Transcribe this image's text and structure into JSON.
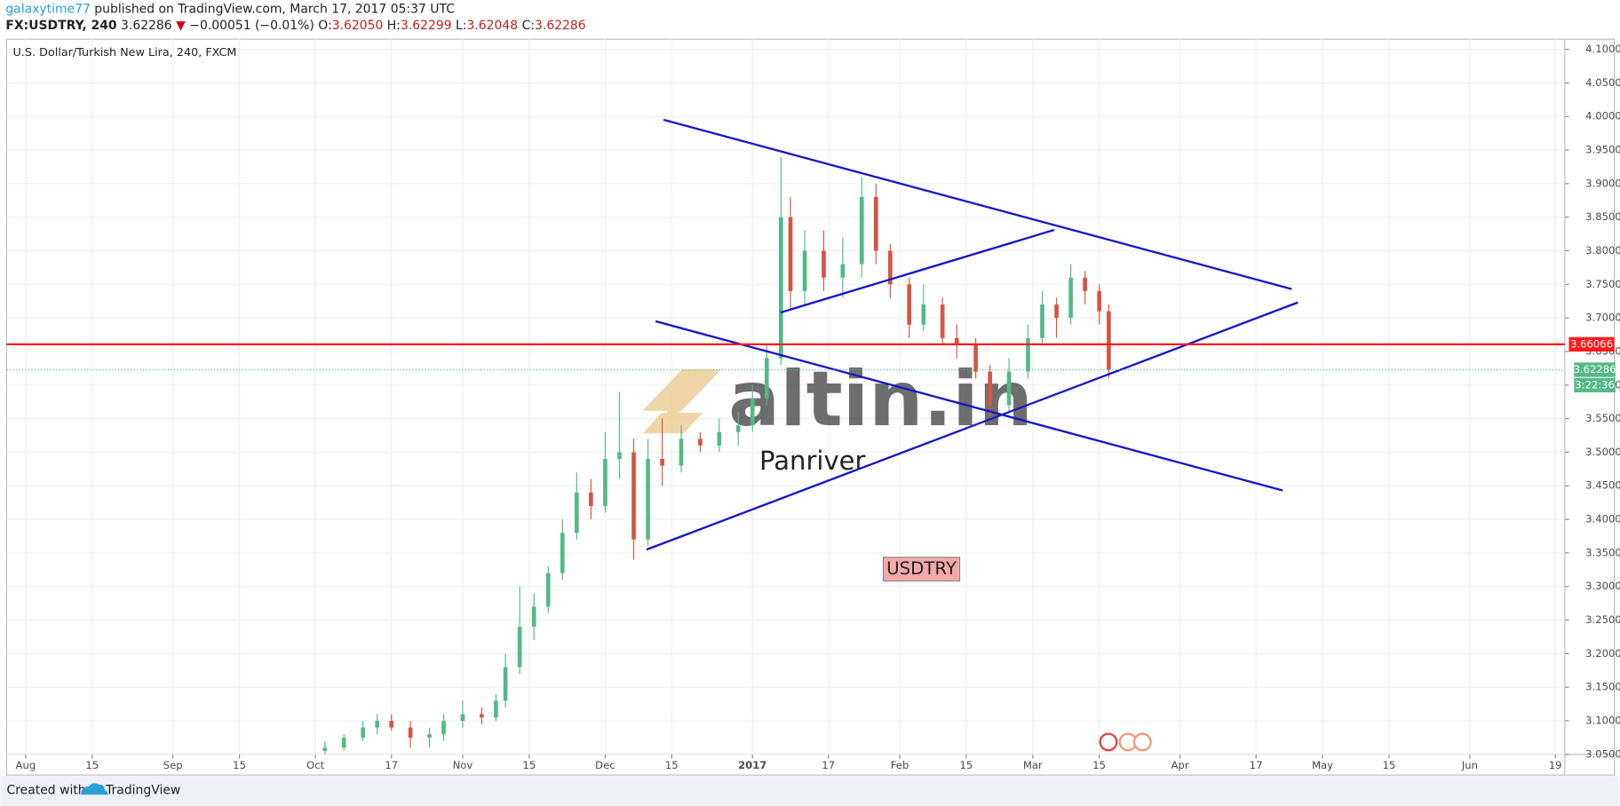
{
  "header": {
    "author": "galaxytime77",
    "published": "published on TradingView.com, March 17, 2017 05:37 UTC",
    "symbol": "FX:USDTRY, 240",
    "price": "3.62286",
    "change": "−0.00051 (−0.01%)",
    "ohlc": [
      {
        "label": "O:",
        "value": "3.62050"
      },
      {
        "label": "H:",
        "value": "3.62299"
      },
      {
        "label": "L:",
        "value": "3.62048"
      },
      {
        "label": "C:",
        "value": "3.62286"
      }
    ]
  },
  "chart_data": {
    "type": "candlestick",
    "title": "U.S. Dollar/Turkish New Lira, 240, FXCM",
    "up_color": "#53b987",
    "down_color": "#d75442",
    "grid": true,
    "candles": {
      "x": [
        63,
        67,
        71,
        74,
        77,
        81,
        85,
        88,
        92,
        96,
        99,
        101,
        104,
        107,
        110,
        113,
        116,
        119,
        122,
        125,
        128,
        131,
        134,
        138,
        142,
        146,
        150,
        153,
        156,
        159,
        161,
        164,
        168,
        172,
        176,
        179,
        182,
        186,
        189,
        193,
        196,
        200,
        203,
        207,
        211,
        214,
        217,
        220,
        223,
        226,
        228
      ],
      "open": [
        3.055,
        3.06,
        3.075,
        3.09,
        3.1,
        3.09,
        3.075,
        3.08,
        3.1,
        3.11,
        3.105,
        3.13,
        3.18,
        3.24,
        3.27,
        3.32,
        3.38,
        3.44,
        3.42,
        3.49,
        3.5,
        3.37,
        3.49,
        3.48,
        3.52,
        3.51,
        3.53,
        3.54,
        3.58,
        3.64,
        3.85,
        3.74,
        3.8,
        3.76,
        3.78,
        3.88,
        3.8,
        3.75,
        3.69,
        3.72,
        3.67,
        3.66,
        3.62,
        3.57,
        3.62,
        3.67,
        3.72,
        3.7,
        3.76,
        3.74,
        3.71
      ],
      "high": [
        3.07,
        3.08,
        3.1,
        3.11,
        3.11,
        3.1,
        3.09,
        3.11,
        3.13,
        3.12,
        3.14,
        3.2,
        3.3,
        3.29,
        3.33,
        3.4,
        3.47,
        3.46,
        3.53,
        3.59,
        3.52,
        3.52,
        3.55,
        3.54,
        3.53,
        3.55,
        3.56,
        3.6,
        3.66,
        3.94,
        3.88,
        3.83,
        3.83,
        3.82,
        3.91,
        3.9,
        3.81,
        3.76,
        3.75,
        3.73,
        3.69,
        3.67,
        3.63,
        3.64,
        3.69,
        3.74,
        3.73,
        3.78,
        3.77,
        3.75,
        3.72
      ],
      "low": [
        3.05,
        3.055,
        3.07,
        3.08,
        3.085,
        3.06,
        3.06,
        3.07,
        3.09,
        3.095,
        3.1,
        3.12,
        3.17,
        3.22,
        3.26,
        3.31,
        3.37,
        3.4,
        3.41,
        3.46,
        3.34,
        3.36,
        3.45,
        3.47,
        3.5,
        3.5,
        3.51,
        3.53,
        3.57,
        3.63,
        3.71,
        3.72,
        3.74,
        3.73,
        3.76,
        3.78,
        3.73,
        3.67,
        3.68,
        3.66,
        3.64,
        3.61,
        3.555,
        3.56,
        3.61,
        3.66,
        3.67,
        3.69,
        3.72,
        3.69,
        3.61
      ],
      "close": [
        3.06,
        3.075,
        3.09,
        3.1,
        3.09,
        3.075,
        3.08,
        3.1,
        3.11,
        3.105,
        3.13,
        3.18,
        3.24,
        3.27,
        3.32,
        3.38,
        3.44,
        3.42,
        3.49,
        3.5,
        3.37,
        3.49,
        3.48,
        3.52,
        3.51,
        3.53,
        3.54,
        3.58,
        3.64,
        3.85,
        3.74,
        3.8,
        3.76,
        3.78,
        3.88,
        3.8,
        3.75,
        3.69,
        3.72,
        3.67,
        3.66,
        3.62,
        3.57,
        3.62,
        3.67,
        3.72,
        3.7,
        3.76,
        3.74,
        3.71,
        3.62286
      ]
    },
    "xlim": [
      -4,
      324
    ],
    "ylim": [
      3.05,
      4.115
    ],
    "xticks": [
      {
        "value": 0,
        "label": "Aug"
      },
      {
        "value": 14,
        "label": "15"
      },
      {
        "value": 31,
        "label": "Sep"
      },
      {
        "value": 45,
        "label": "15"
      },
      {
        "value": 61,
        "label": "Oct"
      },
      {
        "value": 77,
        "label": "17"
      },
      {
        "value": 92,
        "label": "Nov"
      },
      {
        "value": 106,
        "label": "15"
      },
      {
        "value": 122,
        "label": "Dec"
      },
      {
        "value": 136,
        "label": "15"
      },
      {
        "value": 153,
        "label": "2017"
      },
      {
        "value": 169,
        "label": "17"
      },
      {
        "value": 184,
        "label": "Feb"
      },
      {
        "value": 198,
        "label": "15"
      },
      {
        "value": 212,
        "label": "Mar"
      },
      {
        "value": 226,
        "label": "15"
      },
      {
        "value": 243,
        "label": "Apr"
      },
      {
        "value": 259,
        "label": "17"
      },
      {
        "value": 273,
        "label": "May"
      },
      {
        "value": 287,
        "label": "15"
      },
      {
        "value": 304,
        "label": "Jun"
      },
      {
        "value": 322,
        "label": "19"
      }
    ],
    "yticks": [
      {
        "value": 3.05,
        "label": "3.05000"
      },
      {
        "value": 3.1,
        "label": "3.10000"
      },
      {
        "value": 3.15,
        "label": "3.15000"
      },
      {
        "value": 3.2,
        "label": "3.20000"
      },
      {
        "value": 3.25,
        "label": "3.25000"
      },
      {
        "value": 3.3,
        "label": "3.30000"
      },
      {
        "value": 3.35,
        "label": "3.35000"
      },
      {
        "value": 3.4,
        "label": "3.40000"
      },
      {
        "value": 3.45,
        "label": "3.45000"
      },
      {
        "value": 3.5,
        "label": "3.50000"
      },
      {
        "value": 3.55,
        "label": "3.55000"
      },
      {
        "value": 3.6,
        "label": "3.60000"
      },
      {
        "value": 3.65,
        "label": "3.65000"
      },
      {
        "value": 3.7,
        "label": "3.70000"
      },
      {
        "value": 3.75,
        "label": "3.75000"
      },
      {
        "value": 3.8,
        "label": "3.80000"
      },
      {
        "value": 3.85,
        "label": "3.85000"
      },
      {
        "value": 3.9,
        "label": "3.90000"
      },
      {
        "value": 3.95,
        "label": "3.95000"
      },
      {
        "value": 4.0,
        "label": "4.00000"
      },
      {
        "value": 4.05,
        "label": "4.05000"
      },
      {
        "value": 4.1,
        "label": "4.10000"
      }
    ],
    "drawings": [
      {
        "x1": 134.3,
        "y1": 3.995,
        "x2": 266.5,
        "y2": 3.743,
        "color": "#1515c8"
      },
      {
        "x1": 158.9,
        "y1": 3.708,
        "x2": 216.5,
        "y2": 3.831,
        "color": "#1515c8"
      },
      {
        "x1": 132.6,
        "y1": 3.695,
        "x2": 264.6,
        "y2": 3.443,
        "color": "#1515c8"
      },
      {
        "x1": 130.7,
        "y1": 3.355,
        "x2": 267.8,
        "y2": 3.723,
        "color": "#1515c8"
      }
    ],
    "hline": {
      "value": 3.66066,
      "label": "3.66066",
      "color": "#ff1a1a"
    },
    "last_price": {
      "value": 3.62286,
      "label": "3.62286",
      "countdown": "3:22:36"
    },
    "watermark": "altin.in",
    "watermark_sub": "Panriver",
    "annotation": "USDTRY"
  },
  "footer": {
    "created": "Created with",
    "brand": "TradingView"
  }
}
